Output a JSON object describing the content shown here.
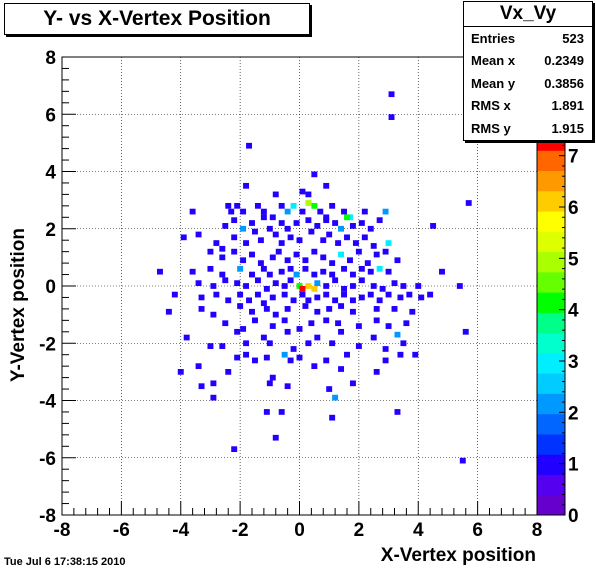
{
  "title": "Y- vs X-Vertex Position",
  "timestamp": "Tue Jul  6 17:38:15 2010",
  "stats": {
    "name": "Vx_Vy",
    "rows": [
      {
        "label": "Entries",
        "value": "523"
      },
      {
        "label": "Mean x",
        "value": "0.2349"
      },
      {
        "label": "Mean y",
        "value": "0.3856"
      },
      {
        "label": "RMS x",
        "value": "1.891"
      },
      {
        "label": "RMS y",
        "value": "1.915"
      }
    ]
  },
  "chart_data": {
    "type": "heatmap",
    "xlabel": "X-Vertex position",
    "ylabel": "Y-Vertex position",
    "xlim": [
      -8,
      8
    ],
    "ylim": [
      -8,
      8
    ],
    "xticks": [
      -8,
      -6,
      -4,
      -2,
      0,
      2,
      4,
      6,
      8
    ],
    "yticks": [
      -8,
      -6,
      -4,
      -2,
      0,
      2,
      4,
      6,
      8
    ],
    "bin_width": 0.2,
    "zlim": [
      0,
      7.5
    ],
    "zticks": [
      0,
      1,
      2,
      3,
      4,
      5,
      6,
      7
    ],
    "grid": true,
    "palette": [
      "#6600cc",
      "#5500ee",
      "#2200ff",
      "#0033ff",
      "#0066ff",
      "#0099ff",
      "#00ccff",
      "#00eeff",
      "#00ffcc",
      "#00ff88",
      "#00ff00",
      "#66ff00",
      "#aaff00",
      "#ddff00",
      "#ffff00",
      "#ffcc00",
      "#ff9900",
      "#ff6600",
      "#ff0000"
    ],
    "points": [
      [
        3.1,
        6.7,
        1
      ],
      [
        3.1,
        5.9,
        1
      ],
      [
        -1.7,
        4.9,
        1
      ],
      [
        -1.8,
        3.5,
        1
      ],
      [
        0.5,
        3.9,
        1
      ],
      [
        0.9,
        3.5,
        1
      ],
      [
        0.1,
        3.3,
        1
      ],
      [
        -0.8,
        3.2,
        1
      ],
      [
        0.3,
        3.2,
        1
      ],
      [
        -3.6,
        2.6,
        1
      ],
      [
        -2.4,
        2.8,
        1
      ],
      [
        -2.3,
        2.6,
        1
      ],
      [
        -2.1,
        2.8,
        1
      ],
      [
        -1.9,
        2.6,
        1
      ],
      [
        -1.4,
        2.8,
        1
      ],
      [
        -1.2,
        2.6,
        1
      ],
      [
        -0.9,
        2.4,
        1
      ],
      [
        -0.6,
        2.8,
        1
      ],
      [
        -0.4,
        2.6,
        2
      ],
      [
        -0.2,
        2.8,
        3
      ],
      [
        0.1,
        2.6,
        1
      ],
      [
        0.3,
        2.9,
        5
      ],
      [
        0.5,
        2.8,
        4
      ],
      [
        0.7,
        2.6,
        1
      ],
      [
        0.9,
        2.4,
        1
      ],
      [
        1.1,
        2.8,
        1
      ],
      [
        1.5,
        2.6,
        1
      ],
      [
        1.7,
        2.4,
        3
      ],
      [
        2.2,
        2.6,
        1
      ],
      [
        2.9,
        2.6,
        2
      ],
      [
        5.7,
        2.9,
        1
      ],
      [
        -2.5,
        2.1,
        1
      ],
      [
        -2.2,
        2.3,
        1
      ],
      [
        -1.9,
        2.0,
        2
      ],
      [
        -1.6,
        2.2,
        1
      ],
      [
        -1.2,
        2.4,
        1
      ],
      [
        -1.0,
        2.0,
        1
      ],
      [
        -0.6,
        2.2,
        1
      ],
      [
        -0.4,
        2.0,
        1
      ],
      [
        -0.1,
        2.2,
        1
      ],
      [
        0.3,
        2.3,
        1
      ],
      [
        0.6,
        2.1,
        1
      ],
      [
        0.9,
        2.3,
        1
      ],
      [
        1.2,
        2.2,
        1
      ],
      [
        1.4,
        2.0,
        2
      ],
      [
        1.6,
        2.4,
        4
      ],
      [
        1.8,
        2.1,
        1
      ],
      [
        2.1,
        2.2,
        1
      ],
      [
        2.4,
        2.0,
        1
      ],
      [
        2.7,
        2.3,
        1
      ],
      [
        4.5,
        2.1,
        1
      ],
      [
        -3.9,
        1.7,
        1
      ],
      [
        -3.4,
        1.8,
        1
      ],
      [
        -2.8,
        1.5,
        1
      ],
      [
        -2.6,
        1.3,
        1
      ],
      [
        -2.2,
        1.7,
        1
      ],
      [
        -1.8,
        1.5,
        1
      ],
      [
        -1.5,
        1.9,
        1
      ],
      [
        -1.3,
        1.6,
        1
      ],
      [
        -0.8,
        1.8,
        1
      ],
      [
        -0.6,
        1.5,
        1
      ],
      [
        -0.3,
        1.7,
        1
      ],
      [
        0.0,
        1.6,
        1
      ],
      [
        0.4,
        1.9,
        1
      ],
      [
        0.8,
        1.6,
        1
      ],
      [
        1.0,
        1.8,
        1
      ],
      [
        1.3,
        1.5,
        1
      ],
      [
        1.6,
        1.7,
        1
      ],
      [
        1.9,
        1.5,
        1
      ],
      [
        2.2,
        1.7,
        1
      ],
      [
        2.5,
        1.4,
        1
      ],
      [
        3.0,
        1.5,
        3
      ],
      [
        -3.0,
        1.2,
        1
      ],
      [
        -2.6,
        1.0,
        1
      ],
      [
        -2.2,
        1.2,
        1
      ],
      [
        -1.9,
        0.9,
        1
      ],
      [
        -1.6,
        1.1,
        1
      ],
      [
        -1.3,
        0.8,
        1
      ],
      [
        -0.9,
        1.0,
        1
      ],
      [
        -0.7,
        1.2,
        1
      ],
      [
        -0.4,
        0.9,
        1
      ],
      [
        -0.1,
        1.1,
        1
      ],
      [
        0.2,
        0.9,
        1
      ],
      [
        0.5,
        1.2,
        1
      ],
      [
        0.8,
        1.0,
        1
      ],
      [
        1.1,
        0.8,
        1
      ],
      [
        1.4,
        1.1,
        3
      ],
      [
        1.7,
        0.9,
        1
      ],
      [
        2.0,
        1.2,
        1
      ],
      [
        2.3,
        0.8,
        1
      ],
      [
        2.6,
        1.1,
        1
      ],
      [
        2.9,
        1.2,
        1
      ],
      [
        3.3,
        0.9,
        1
      ],
      [
        -4.7,
        0.5,
        1
      ],
      [
        -3.6,
        0.5,
        1
      ],
      [
        -3.0,
        0.6,
        1
      ],
      [
        -2.6,
        0.4,
        1
      ],
      [
        -2.0,
        0.6,
        2
      ],
      [
        -1.6,
        0.4,
        1
      ],
      [
        -1.2,
        0.6,
        1
      ],
      [
        -1.0,
        0.4,
        1
      ],
      [
        -0.6,
        0.5,
        1
      ],
      [
        -0.3,
        0.6,
        1
      ],
      [
        -0.1,
        0.4,
        2
      ],
      [
        0.2,
        0.6,
        1
      ],
      [
        0.5,
        0.4,
        1
      ],
      [
        0.8,
        0.5,
        1
      ],
      [
        1.1,
        0.4,
        1
      ],
      [
        1.5,
        0.6,
        1
      ],
      [
        1.8,
        0.4,
        1
      ],
      [
        2.1,
        0.6,
        1
      ],
      [
        2.4,
        0.5,
        1
      ],
      [
        2.7,
        0.6,
        3
      ],
      [
        3.0,
        0.5,
        1
      ],
      [
        4.8,
        0.5,
        1
      ],
      [
        -3.4,
        0.1,
        1
      ],
      [
        -2.9,
        0.0,
        1
      ],
      [
        -2.5,
        0.2,
        1
      ],
      [
        -2.1,
        0.1,
        1
      ],
      [
        -1.8,
        0.0,
        1
      ],
      [
        -1.4,
        0.2,
        1
      ],
      [
        -1.1,
        -0.1,
        1
      ],
      [
        -0.8,
        0.1,
        1
      ],
      [
        -0.5,
        0.0,
        1
      ],
      [
        -0.3,
        0.2,
        1
      ],
      [
        0.0,
        0.0,
        4
      ],
      [
        0.1,
        -0.1,
        18
      ],
      [
        0.3,
        0.0,
        6
      ],
      [
        0.5,
        -0.1,
        6
      ],
      [
        0.6,
        0.1,
        2
      ],
      [
        0.9,
        0.0,
        1
      ],
      [
        1.2,
        0.2,
        1
      ],
      [
        1.5,
        -0.1,
        1
      ],
      [
        1.8,
        0.0,
        1
      ],
      [
        2.1,
        0.2,
        1
      ],
      [
        2.5,
        0.0,
        1
      ],
      [
        2.8,
        -0.1,
        1
      ],
      [
        3.2,
        0.1,
        1
      ],
      [
        3.5,
        0.0,
        1
      ],
      [
        4.0,
        0.0,
        1
      ],
      [
        5.4,
        0.0,
        1
      ],
      [
        -4.2,
        -0.3,
        1
      ],
      [
        -3.3,
        -0.4,
        1
      ],
      [
        -2.8,
        -0.3,
        1
      ],
      [
        -2.4,
        -0.5,
        1
      ],
      [
        -2.0,
        -0.3,
        1
      ],
      [
        -1.7,
        -0.5,
        1
      ],
      [
        -1.4,
        -0.3,
        1
      ],
      [
        -1.2,
        -0.6,
        1
      ],
      [
        -0.9,
        -0.4,
        1
      ],
      [
        -0.5,
        -0.3,
        1
      ],
      [
        -0.2,
        -0.5,
        1
      ],
      [
        0.1,
        -0.3,
        1
      ],
      [
        0.3,
        -0.5,
        1
      ],
      [
        0.6,
        -0.4,
        1
      ],
      [
        0.9,
        -0.3,
        1
      ],
      [
        1.2,
        -0.5,
        1
      ],
      [
        1.5,
        -0.3,
        1
      ],
      [
        1.8,
        -0.5,
        1
      ],
      [
        2.1,
        -0.4,
        1
      ],
      [
        2.4,
        -0.3,
        1
      ],
      [
        2.7,
        -0.5,
        1
      ],
      [
        3.0,
        -0.3,
        1
      ],
      [
        3.4,
        -0.4,
        1
      ],
      [
        3.7,
        -0.3,
        1
      ],
      [
        4.1,
        -0.4,
        1
      ],
      [
        4.4,
        -0.3,
        1
      ],
      [
        -4.4,
        -0.9,
        1
      ],
      [
        -3.3,
        -0.8,
        1
      ],
      [
        -2.9,
        -1.0,
        1
      ],
      [
        -2.0,
        -0.7,
        1
      ],
      [
        -1.6,
        -0.9,
        1
      ],
      [
        -1.1,
        -0.8,
        1
      ],
      [
        -0.8,
        -1.0,
        1
      ],
      [
        -0.4,
        -0.8,
        1
      ],
      [
        0.2,
        -0.7,
        1
      ],
      [
        0.6,
        -0.9,
        1
      ],
      [
        1.0,
        -0.8,
        1
      ],
      [
        1.4,
        -0.7,
        1
      ],
      [
        1.8,
        -0.9,
        1
      ],
      [
        2.6,
        -0.8,
        1
      ],
      [
        3.2,
        -0.8,
        1
      ],
      [
        3.8,
        -0.9,
        1
      ],
      [
        -2.5,
        -1.3,
        1
      ],
      [
        -1.9,
        -1.5,
        1
      ],
      [
        -1.5,
        -1.2,
        1
      ],
      [
        -0.9,
        -1.4,
        1
      ],
      [
        -0.5,
        -1.2,
        1
      ],
      [
        0.0,
        -1.5,
        1
      ],
      [
        0.4,
        -1.3,
        1
      ],
      [
        0.9,
        -1.2,
        1
      ],
      [
        1.3,
        -1.3,
        1
      ],
      [
        2.0,
        -1.4,
        1
      ],
      [
        2.6,
        -1.2,
        1
      ],
      [
        3.0,
        -1.4,
        1
      ],
      [
        3.6,
        -1.3,
        1
      ],
      [
        -3.8,
        -1.8,
        1
      ],
      [
        -2.1,
        -1.6,
        1
      ],
      [
        -1.2,
        -1.8,
        1
      ],
      [
        -0.4,
        -1.6,
        1
      ],
      [
        0.6,
        -1.8,
        1
      ],
      [
        1.4,
        -1.6,
        1
      ],
      [
        2.5,
        -1.8,
        1
      ],
      [
        3.3,
        -1.7,
        2
      ],
      [
        5.6,
        -1.6,
        1
      ],
      [
        -3.0,
        -2.1,
        1
      ],
      [
        -2.6,
        -2.1,
        1
      ],
      [
        -1.8,
        -2.0,
        1
      ],
      [
        -1.0,
        -2.0,
        1
      ],
      [
        -0.2,
        -2.2,
        1
      ],
      [
        0.3,
        -2.0,
        1
      ],
      [
        1.1,
        -2.0,
        1
      ],
      [
        2.0,
        -2.1,
        1
      ],
      [
        2.9,
        -2.2,
        1
      ],
      [
        3.5,
        -2.0,
        1
      ],
      [
        -2.1,
        -2.5,
        1
      ],
      [
        -1.8,
        -2.4,
        1
      ],
      [
        -1.5,
        -2.6,
        1
      ],
      [
        -1.1,
        -2.5,
        1
      ],
      [
        -0.5,
        -2.4,
        2
      ],
      [
        -0.3,
        -2.6,
        1
      ],
      [
        0.0,
        -2.5,
        1
      ],
      [
        0.9,
        -2.6,
        1
      ],
      [
        1.6,
        -2.4,
        1
      ],
      [
        2.9,
        -2.6,
        1
      ],
      [
        3.4,
        -2.4,
        1
      ],
      [
        3.9,
        -2.4,
        1
      ],
      [
        -4.0,
        -3.0,
        1
      ],
      [
        -3.4,
        -2.8,
        1
      ],
      [
        -2.4,
        -3.0,
        1
      ],
      [
        -0.9,
        -3.2,
        1
      ],
      [
        0.5,
        -2.8,
        1
      ],
      [
        1.4,
        -2.9,
        1
      ],
      [
        2.6,
        -3.0,
        1
      ],
      [
        -3.3,
        -3.5,
        1
      ],
      [
        -2.9,
        -3.4,
        1
      ],
      [
        -1.0,
        -3.4,
        1
      ],
      [
        -0.4,
        -3.5,
        1
      ],
      [
        1.0,
        -3.6,
        1
      ],
      [
        1.8,
        -3.4,
        1
      ],
      [
        -2.9,
        -3.9,
        1
      ],
      [
        1.2,
        -3.9,
        2
      ],
      [
        3.3,
        -4.4,
        1
      ],
      [
        -1.1,
        -4.4,
        1
      ],
      [
        -0.6,
        -4.4,
        1
      ],
      [
        1.1,
        -4.6,
        1
      ],
      [
        -0.8,
        -5.3,
        1
      ],
      [
        -2.2,
        -5.7,
        1
      ],
      [
        5.5,
        -6.1,
        1
      ]
    ]
  }
}
